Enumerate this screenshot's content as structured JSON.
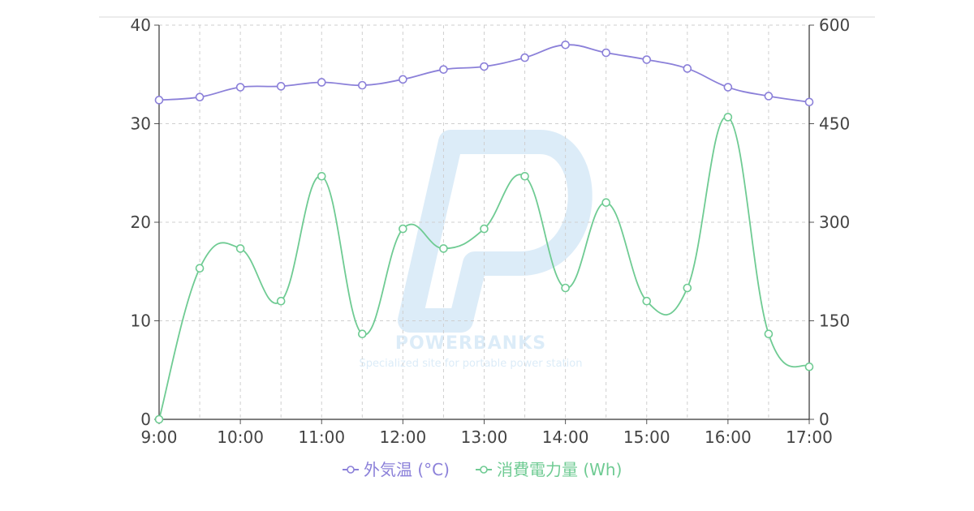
{
  "chart_data": {
    "type": "line",
    "x": [
      "9:00",
      "9:30",
      "10:00",
      "10:30",
      "11:00",
      "11:30",
      "12:00",
      "12:30",
      "13:00",
      "13:30",
      "14:00",
      "14:30",
      "15:00",
      "15:30",
      "16:00",
      "16:30",
      "17:00"
    ],
    "x_tick_labels": [
      "9:00",
      "10:00",
      "11:00",
      "12:00",
      "13:00",
      "14:00",
      "15:00",
      "16:00",
      "17:00"
    ],
    "y_left": {
      "ylim": [
        0,
        40
      ],
      "ticks": [
        "0",
        "10",
        "20",
        "30",
        "40"
      ]
    },
    "y_right": {
      "ylim": [
        0,
        600
      ],
      "ticks": [
        "0",
        "150",
        "300",
        "450",
        "600"
      ]
    },
    "grid": true,
    "legend_position": "bottom-center",
    "series": [
      {
        "name": "外気温 (°C)",
        "axis": "left",
        "color": "#8b80d9",
        "values": [
          32.4,
          32.7,
          33.7,
          33.8,
          34.2,
          33.9,
          34.5,
          35.5,
          35.8,
          36.7,
          38.0,
          37.2,
          36.5,
          35.6,
          33.7,
          32.8,
          32.2
        ]
      },
      {
        "name": "消費電力量 (Wh)",
        "axis": "right",
        "color": "#6fcb93",
        "values": [
          0,
          230,
          260,
          180,
          370,
          130,
          290,
          260,
          290,
          370,
          200,
          330,
          180,
          200,
          460,
          130,
          80
        ]
      }
    ]
  },
  "watermark": {
    "title": "POWERBANKS",
    "subtitle": "Specialized site for portable power station",
    "color": "#dcecf8"
  }
}
